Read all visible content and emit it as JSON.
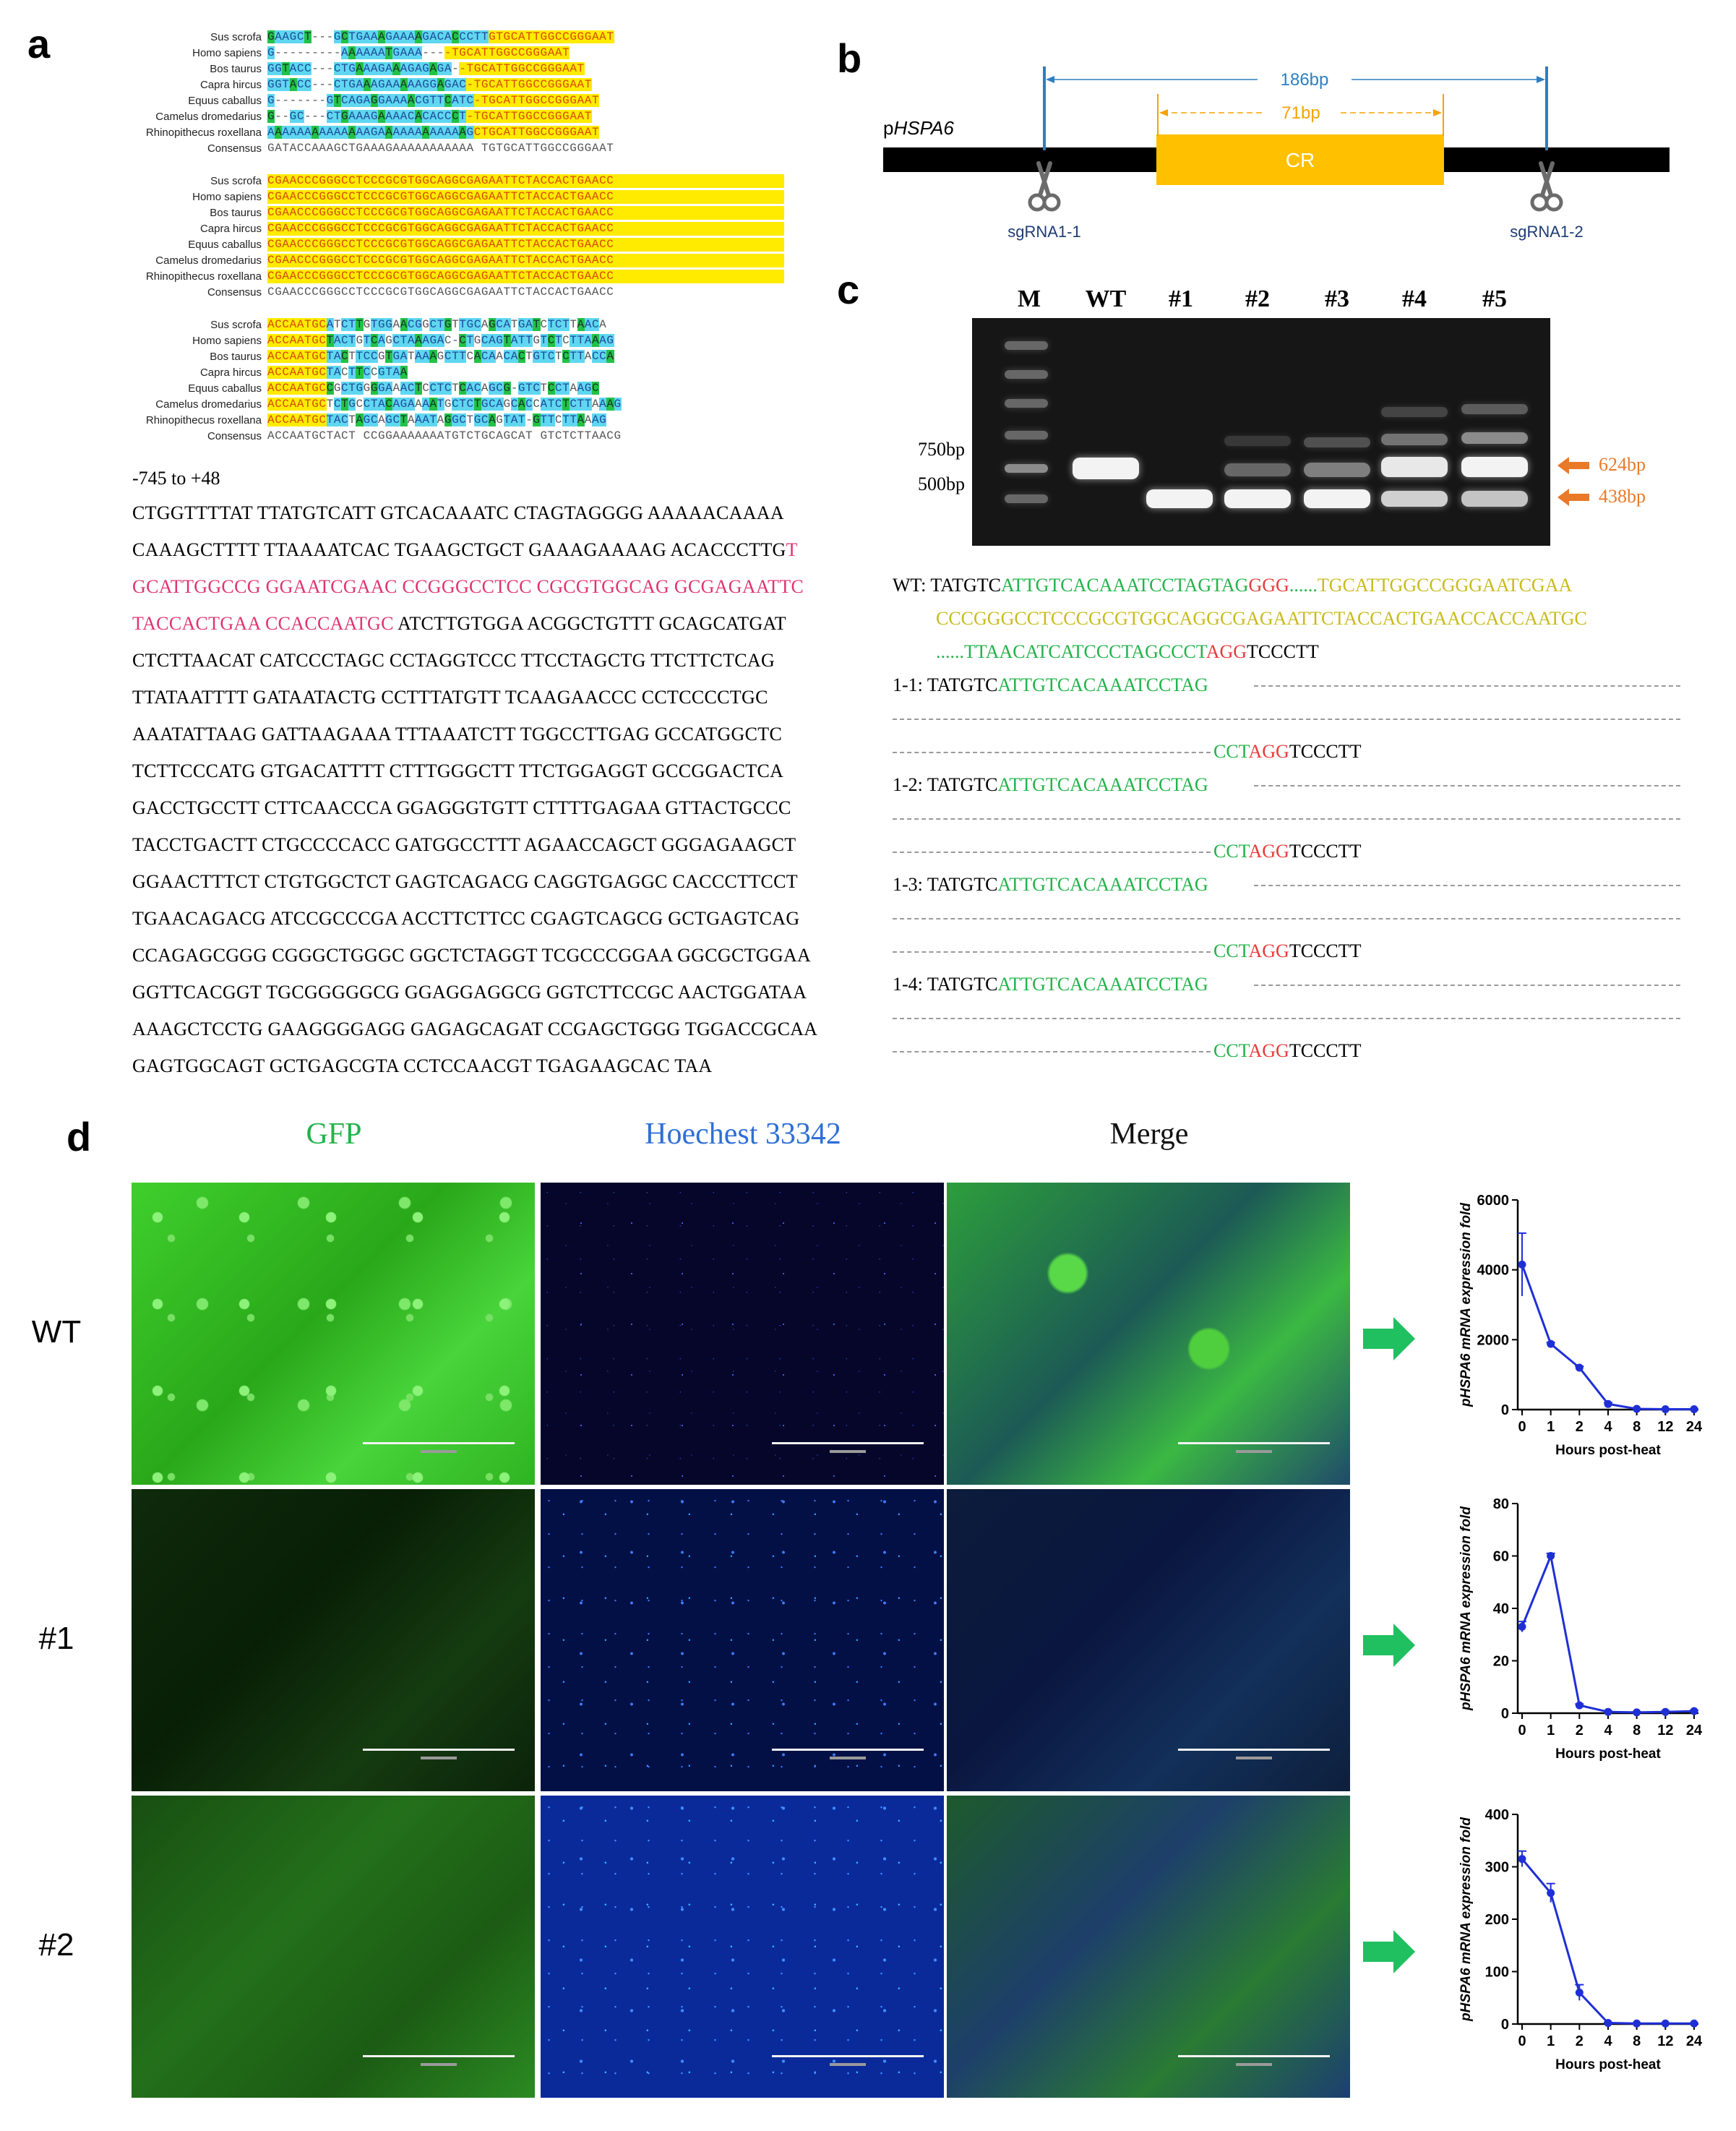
{
  "panels": {
    "a": "a",
    "b": "b",
    "c": "c",
    "d": "d"
  },
  "alignment": {
    "species": [
      "Sus scrofa",
      "Homo sapiens",
      "Bos taurus",
      "Capra hircus",
      "Equus caballus",
      "Camelus dromedarius",
      "Rhinopithecus roxellana",
      "Consensus"
    ],
    "blocks": [
      {
        "rows": [
          {
            "seq": "GAAGCT---GCTGAAAGAAAAGACACCCTTGTGCATTGGCCGGGAAT",
            "style": "mixed1"
          },
          {
            "seq": "G---------AAAAAATGAAA----TGCATTGGCCGGGAAT",
            "style": "mixed1"
          },
          {
            "seq": "GGTACC---CTGAAAGAAAGAGAGA--TGCATTGGCCGGGAAT",
            "style": "mixed1"
          },
          {
            "seq": "GGTACC---CTGAAAGAAAAAGGAGAC-TGCATTGGCCGGGAAT",
            "style": "mixed1"
          },
          {
            "seq": "G-------GTCAGAGGAAAACGTTCATC-TGCATTGGCCGGGAAT",
            "style": "mixed1"
          },
          {
            "seq": "G--GC---CTGAAAGAAAACACACCCT-TGCATTGGCCGGGAAT",
            "style": "mixed1"
          },
          {
            "seq": "AAAAAAAAAAAAAAGAAAAAAAAAAAAGCTGCATTGGCCGGGAAT",
            "style": "mixed1"
          },
          {
            "seq": "GATACCAAAGCTGAAAGAAAAAAAAAAA TGTGCATTGGCCGGGAAT",
            "style": "consensus"
          }
        ]
      },
      {
        "rows": [
          {
            "seq": "CGAACCCGGGCCTCCCGCGTGGCAGGCGAGAATTCTACCACTGAACC",
            "style": "yellow"
          },
          {
            "seq": "CGAACCCGGGCCTCCCGCGTGGCAGGCGAGAATTCTACCACTGAACC",
            "style": "yellow"
          },
          {
            "seq": "CGAACCCGGGCCTCCCGCGTGGCAGGCGAGAATTCTACCACTGAACC",
            "style": "yellow"
          },
          {
            "seq": "CGAACCCGGGCCTCCCGCGTGGCAGGCGAGAATTCTACCACTGAACC",
            "style": "yellow"
          },
          {
            "seq": "CGAACCCGGGCCTCCCGCGTGGCAGGCGAGAATTCTACCACTGAACC",
            "style": "yellow"
          },
          {
            "seq": "CGAACCCGGGCCTCCCGCGTGGCAGGCGAGAATTCTACCACTGAACC",
            "style": "yellow"
          },
          {
            "seq": "CGAACCCGGGCCTCCCGCGTGGCAGGCGAGAATTCTACCACTGAACC",
            "style": "yellow"
          },
          {
            "seq": "CGAACCCGGGCCTCCCGCGTGGCAGGCGAGAATTCTACCACTGAACC",
            "style": "consensus"
          }
        ]
      },
      {
        "rows": [
          {
            "seq": "ACCAATGCATCTTGTGGAACGGCTGTTGCAGCATGATCTCTTAACA",
            "style": "mixed3"
          },
          {
            "seq": "ACCAATGCTACTGTCAGCTAAAGAC-CTGCAGTATTGTCTCTTAAAG",
            "style": "mixed3"
          },
          {
            "seq": "ACCAATGCTACTTCCGTGATAAAGCTTCACAACACTGTCTCTTACCA",
            "style": "mixed3"
          },
          {
            "seq": "ACCAATGCTACTTCCGTAA",
            "style": "mixed3"
          },
          {
            "seq": "ACCAATGCCGCTGGGGAAACTCCTCTCACAGCG-GTCTCCTAAGC",
            "style": "mixed3"
          },
          {
            "seq": "ACCAATGCTCTGCCTACAGAAAATGCTCTGCAGCACCATCTCTTAAAG",
            "style": "mixed3"
          },
          {
            "seq": "ACCAATGCTACTAGCAGCTAAATAGGCTGCAGTAT-GTTCTTAAAG",
            "style": "mixed3"
          },
          {
            "seq": "ACCAATGCTACT CCGGAAAAAAATGTCTGCAGCAT GTCTCTTAACG",
            "style": "consensus"
          }
        ]
      }
    ]
  },
  "promoter": {
    "title": "-745 to +48",
    "lines": [
      {
        "parts": [
          {
            "t": "CTGGTTTTAT TTATGTCATT GTCACAAATC CTAGTAGGGG AAAAACAAAA",
            "c": "black"
          }
        ]
      },
      {
        "parts": [
          {
            "t": "CAAAGCTTTT TTAAAATCAC TGAAGCTGCT GAAAGAAAAG ACACCCTTG",
            "c": "black"
          },
          {
            "t": "T",
            "c": "pink"
          }
        ]
      },
      {
        "parts": [
          {
            "t": "GCATTGGCCG GGAATCGAAC CCGGGCCTCC CGCGTGGCAG GCGAGAATTC",
            "c": "pink"
          }
        ]
      },
      {
        "parts": [
          {
            "t": "TACCACTGAA CCACCAATGC",
            "c": "pink"
          },
          {
            "t": " ATCTTGTGGA ACGGCTGTTT GCAGCATGAT",
            "c": "black"
          }
        ]
      },
      {
        "parts": [
          {
            "t": "CTCTTAACAT CATCCCTAGC CCTAGGTCCC TTCCTAGCTG TTCTTCTCAG",
            "c": "black"
          }
        ]
      },
      {
        "parts": [
          {
            "t": "TTATAATTTT GATAATACTG CCTTTATGTT TCAAGAACCC CCTCCCCTGC",
            "c": "black"
          }
        ]
      },
      {
        "parts": [
          {
            "t": "AAATATTAAG GATTAAGAAA TTTAAATCTT TGGCCTTGAG GCCATGGCTC",
            "c": "black"
          }
        ]
      },
      {
        "parts": [
          {
            "t": "TCTTCCCATG GTGACATTTT CTTTGGGCTT TTCTGGAGGT GCCGGACTCA",
            "c": "black"
          }
        ]
      },
      {
        "parts": [
          {
            "t": "GACCTGCCTT CTTCAACCCA GGAGGGTGTT CTTTTGAGAA GTTACTGCCC",
            "c": "black"
          }
        ]
      },
      {
        "parts": [
          {
            "t": "TACCTGACTT CTGCCCCACC GATGGCCTTT AGAACCAGCT GGGAGAAGCT",
            "c": "black"
          }
        ]
      },
      {
        "parts": [
          {
            "t": "GGAACTTTCT CTGTGGCTCT GAGTCAGACG CAGGTGAGGC CACCCTTCCT",
            "c": "black"
          }
        ]
      },
      {
        "parts": [
          {
            "t": "TGAACAGACG ATCCGCCCGA ACCTTCTTCC CGAGTCAGCG GCTGAGTCAG",
            "c": "black"
          }
        ]
      },
      {
        "parts": [
          {
            "t": "CCAGAGCGGG CGGGCTGGGC GGCTCTAGGT TCGCCCGGAA GGCGCTGGAA",
            "c": "black"
          }
        ]
      },
      {
        "parts": [
          {
            "t": "GGTTCACGGT TGCGGGGGCG GGAGGAGGCG GGTCTTCCGC AACTGGATAA",
            "c": "black"
          }
        ]
      },
      {
        "parts": [
          {
            "t": "AAAGCTCCTG GAAGGGGAGG GAGAGCAGAT CCGAGCTGGG TGGACCGCAA",
            "c": "black"
          }
        ]
      },
      {
        "parts": [
          {
            "t": "GAGTGGCAGT GCTGAGCGTA CCTCCAACGT TGAGAAGCAC TAA",
            "c": "black"
          }
        ]
      }
    ]
  },
  "panel_b": {
    "gene": "pHSPA6",
    "gene_prefix": "p",
    "gene_italic": "HSPA6",
    "span_outer": "186bp",
    "span_inner": "71bp",
    "region": "CR",
    "sgrna_left": "sgRNA1-1",
    "sgrna_right": "sgRNA1-2",
    "colors": {
      "outer": "#2e7fbf",
      "inner": "#f5a300",
      "region": "#ffc000",
      "bar": "#000000"
    }
  },
  "gel": {
    "lanes": [
      "M",
      "WT",
      "#1",
      "#2",
      "#3",
      "#4",
      "#5"
    ],
    "markers": [
      "750bp",
      "500bp"
    ],
    "arrows": [
      "624bp",
      "438bp"
    ]
  },
  "edits": {
    "wt": {
      "label": "WT:",
      "l1": [
        {
          "t": "TATGTC",
          "c": "k"
        },
        {
          "t": "ATTGTCACAAATCCTAGTAG",
          "c": "g"
        },
        {
          "t": "GGG",
          "c": "r"
        },
        {
          "t": "......",
          "c": "g"
        },
        {
          "t": "TGCATTGGCCGGGAATCGAA",
          "c": "y"
        }
      ],
      "l2": [
        {
          "t": "CCCGGGCCTCCCGCGTGGCAGGCGAGAATTCTACCACTGAACCACCAATGC",
          "c": "y"
        }
      ],
      "l3": [
        {
          "t": "......TTAACATCATCCCTAGCCCT",
          "c": "g"
        },
        {
          "t": "AGG",
          "c": "r"
        },
        {
          "t": "TCCCTT",
          "c": "k"
        }
      ]
    },
    "mutants": [
      {
        "label": "1-1:",
        "pre": "TATGTC",
        "green": "ATTGTCACAAATCCTAG",
        "end_g": "CCT",
        "end_r": "AGG",
        "end_k": "TCCCTT"
      },
      {
        "label": "1-2:",
        "pre": "TATGTC",
        "green": "ATTGTCACAAATCCTAG",
        "end_g": "CCT",
        "end_r": "AGG",
        "end_k": "TCCCTT"
      },
      {
        "label": "1-3:",
        "pre": "TATGTC",
        "green": "ATTGTCACAAATCCTAG",
        "end_g": "CCT",
        "end_r": "AGG",
        "end_k": "TCCCTT"
      },
      {
        "label": "1-4:",
        "pre": "TATGTC",
        "green": "ATTGTCACAAATCCTAG",
        "end_g": "CCT",
        "end_r": "AGG",
        "end_k": "TCCCTT"
      }
    ]
  },
  "microscopy": {
    "columns": [
      "GFP",
      "Hoechest 33342",
      "Merge"
    ],
    "column_colors": [
      "#22b34a",
      "#2f6fd6",
      "#111111"
    ],
    "rows": [
      "WT",
      "#1",
      "#2"
    ]
  },
  "chart_data": [
    {
      "type": "line",
      "row": "WT",
      "xlabel": "Hours post-heat",
      "ylabel": "pHSPA6 mRNA expression fold",
      "categories": [
        "0",
        "1",
        "2",
        "4",
        "8",
        "12",
        "24"
      ],
      "values": [
        4150,
        1880,
        1200,
        160,
        20,
        10,
        10
      ],
      "errors": [
        900,
        40,
        40,
        40,
        10,
        5,
        5
      ],
      "ylim": [
        0,
        6000
      ],
      "yticks": [
        0,
        2000,
        4000,
        6000
      ],
      "color": "#1f2fd6"
    },
    {
      "type": "line",
      "row": "#1",
      "xlabel": "Hours post-heat",
      "ylabel": "pHSPA6 mRNA expression fold",
      "categories": [
        "0",
        "1",
        "2",
        "4",
        "8",
        "12",
        "24"
      ],
      "values": [
        33,
        60,
        3,
        0.5,
        0.3,
        0.5,
        0.8
      ],
      "errors": [
        2,
        1,
        0.5,
        0.3,
        0.2,
        0.3,
        0.3
      ],
      "ylim": [
        0,
        80
      ],
      "yticks": [
        0,
        20,
        40,
        60,
        80
      ],
      "color": "#1f2fd6"
    },
    {
      "type": "line",
      "row": "#2",
      "xlabel": "Hours post-heat",
      "ylabel": "pHSPA6 mRNA expression fold",
      "categories": [
        "0",
        "1",
        "2",
        "4",
        "8",
        "12",
        "24"
      ],
      "values": [
        315,
        250,
        60,
        2,
        1,
        1,
        1
      ],
      "errors": [
        15,
        18,
        15,
        1,
        0.5,
        0.5,
        0.5
      ],
      "ylim": [
        0,
        400
      ],
      "yticks": [
        0,
        100,
        200,
        300,
        400
      ],
      "color": "#1f2fd6"
    }
  ]
}
